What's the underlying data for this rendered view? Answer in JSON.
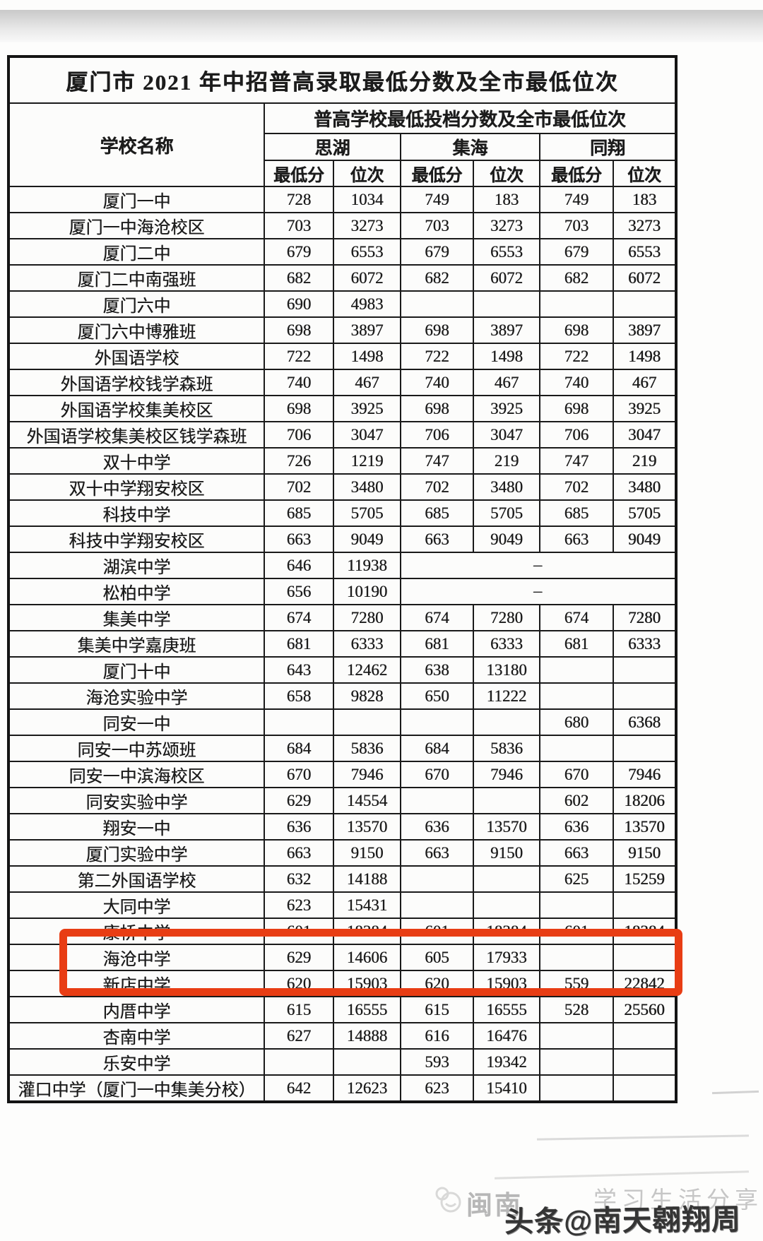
{
  "title": "厦门市 2021 年中招普高录取最低分数及全市最低位次",
  "header": {
    "school_col": "学校名称",
    "group_title": "普高学校最低投档分数及全市最低位次",
    "districts": [
      "思湖",
      "集海",
      "同翔"
    ],
    "sub_cols": [
      "最低分",
      "位次"
    ]
  },
  "rows": [
    {
      "school": "厦门一中",
      "cells": [
        "728",
        "1034",
        "749",
        "183",
        "749",
        "183"
      ]
    },
    {
      "school": "厦门一中海沧校区",
      "cells": [
        "703",
        "3273",
        "703",
        "3273",
        "703",
        "3273"
      ]
    },
    {
      "school": "厦门二中",
      "cells": [
        "679",
        "6553",
        "679",
        "6553",
        "679",
        "6553"
      ]
    },
    {
      "school": "厦门二中南强班",
      "cells": [
        "682",
        "6072",
        "682",
        "6072",
        "682",
        "6072"
      ]
    },
    {
      "school": "厦门六中",
      "cells": [
        "690",
        "4983",
        "",
        "",
        "",
        ""
      ]
    },
    {
      "school": "厦门六中博雅班",
      "cells": [
        "698",
        "3897",
        "698",
        "3897",
        "698",
        "3897"
      ]
    },
    {
      "school": "外国语学校",
      "cells": [
        "722",
        "1498",
        "722",
        "1498",
        "722",
        "1498"
      ]
    },
    {
      "school": "外国语学校钱学森班",
      "cells": [
        "740",
        "467",
        "740",
        "467",
        "740",
        "467"
      ]
    },
    {
      "school": "外国语学校集美校区",
      "cells": [
        "698",
        "3925",
        "698",
        "3925",
        "698",
        "3925"
      ]
    },
    {
      "school": "外国语学校集美校区钱学森班",
      "cells": [
        "706",
        "3047",
        "706",
        "3047",
        "706",
        "3047"
      ]
    },
    {
      "school": "双十中学",
      "cells": [
        "726",
        "1219",
        "747",
        "219",
        "747",
        "219"
      ]
    },
    {
      "school": "双十中学翔安校区",
      "cells": [
        "702",
        "3480",
        "702",
        "3480",
        "702",
        "3480"
      ]
    },
    {
      "school": "科技中学",
      "cells": [
        "685",
        "5705",
        "685",
        "5705",
        "685",
        "5705"
      ]
    },
    {
      "school": "科技中学翔安校区",
      "cells": [
        "663",
        "9049",
        "663",
        "9049",
        "663",
        "9049"
      ]
    },
    {
      "school": "湖滨中学",
      "cells": [
        "646",
        "11938"
      ],
      "dash": "–"
    },
    {
      "school": "松柏中学",
      "cells": [
        "656",
        "10190"
      ],
      "dash": "–"
    },
    {
      "school": "集美中学",
      "cells": [
        "674",
        "7280",
        "674",
        "7280",
        "674",
        "7280"
      ]
    },
    {
      "school": "集美中学嘉庚班",
      "cells": [
        "681",
        "6333",
        "681",
        "6333",
        "681",
        "6333"
      ]
    },
    {
      "school": "厦门十中",
      "cells": [
        "643",
        "12462",
        "638",
        "13180",
        "",
        ""
      ]
    },
    {
      "school": "海沧实验中学",
      "cells": [
        "658",
        "9828",
        "650",
        "11222",
        "",
        ""
      ]
    },
    {
      "school": "同安一中",
      "cells": [
        "",
        "",
        "",
        "",
        "680",
        "6368"
      ]
    },
    {
      "school": "同安一中苏颂班",
      "cells": [
        "684",
        "5836",
        "684",
        "5836",
        "",
        ""
      ]
    },
    {
      "school": "同安一中滨海校区",
      "cells": [
        "670",
        "7946",
        "670",
        "7946",
        "670",
        "7946"
      ]
    },
    {
      "school": "同安实验中学",
      "cells": [
        "629",
        "14554",
        "",
        "",
        "602",
        "18206"
      ]
    },
    {
      "school": "翔安一中",
      "cells": [
        "636",
        "13570",
        "636",
        "13570",
        "636",
        "13570"
      ]
    },
    {
      "school": "厦门实验中学",
      "cells": [
        "663",
        "9150",
        "663",
        "9150",
        "663",
        "9150"
      ]
    },
    {
      "school": "第二外国语学校",
      "cells": [
        "632",
        "14188",
        "",
        "",
        "625",
        "15259"
      ]
    },
    {
      "school": "大同中学",
      "cells": [
        "623",
        "15431",
        "",
        "",
        "",
        ""
      ]
    },
    {
      "school": "康桥中学",
      "cells": [
        "601",
        "18384",
        "601",
        "18384",
        "601",
        "18384"
      ]
    },
    {
      "school": "海沧中学",
      "cells": [
        "629",
        "14606",
        "605",
        "17933",
        "",
        ""
      ]
    },
    {
      "school": "新店中学",
      "cells": [
        "620",
        "15903",
        "620",
        "15903",
        "559",
        "22842"
      ],
      "highlighted": true
    },
    {
      "school": "内厝中学",
      "cells": [
        "615",
        "16555",
        "615",
        "16555",
        "528",
        "25560"
      ],
      "highlighted": true
    },
    {
      "school": "杏南中学",
      "cells": [
        "627",
        "14888",
        "616",
        "16476",
        "",
        ""
      ]
    },
    {
      "school": "乐安中学",
      "cells": [
        "",
        "",
        "593",
        "19342",
        "",
        ""
      ]
    },
    {
      "school": "灌口中学（厦门一中集美分校）",
      "cells": [
        "642",
        "12623",
        "623",
        "15410",
        "",
        ""
      ]
    }
  ],
  "highlight_color": "#e83d14",
  "border_color": "#1a1a1a",
  "watermark": {
    "light_prefix": "闽南",
    "ghost_text": "学习生活分享",
    "main_text": "头条@南天翱翔周"
  }
}
